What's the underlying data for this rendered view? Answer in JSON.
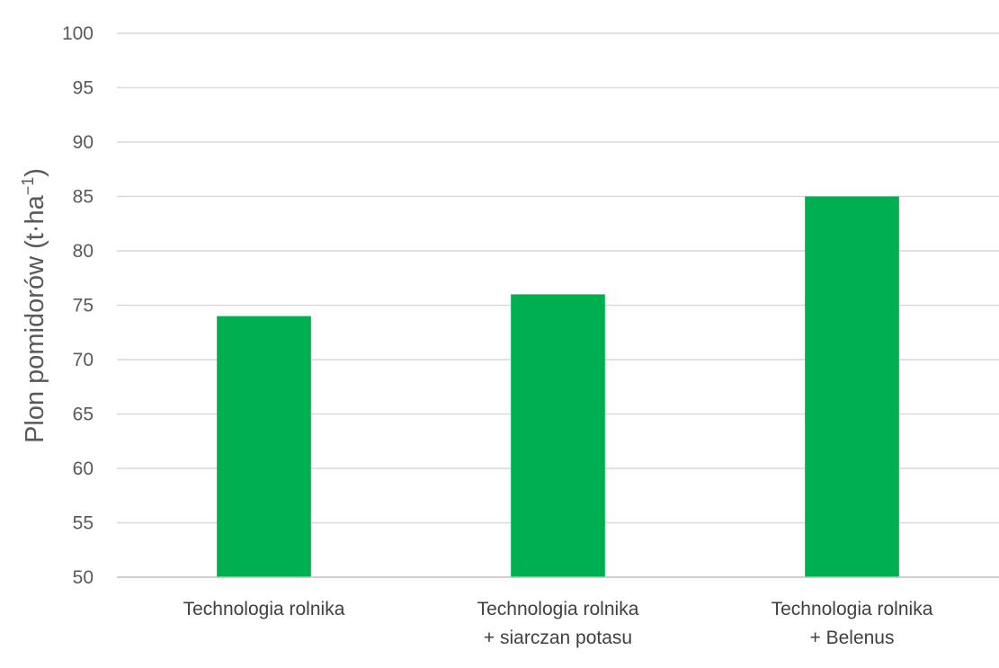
{
  "chart_data": {
    "type": "bar",
    "categories": [
      [
        "Technologia rolnika"
      ],
      [
        "Technologia rolnika",
        "+ siarczan potasu"
      ],
      [
        "Technologia rolnika",
        "+ Belenus"
      ]
    ],
    "values": [
      74,
      76,
      85
    ],
    "ylabel": {
      "main": "Plon pomidorów (t·ha",
      "superscript": "−1",
      "close": ")"
    },
    "xlabel": "",
    "ylim": [
      50,
      100
    ],
    "yticks": [
      50,
      55,
      60,
      65,
      70,
      75,
      80,
      85,
      90,
      95,
      100
    ],
    "grid": true,
    "legend": "none",
    "colors": {
      "bar": "#00b050",
      "grid": "#d9d9d9",
      "axis": "#bfbfbf"
    }
  }
}
